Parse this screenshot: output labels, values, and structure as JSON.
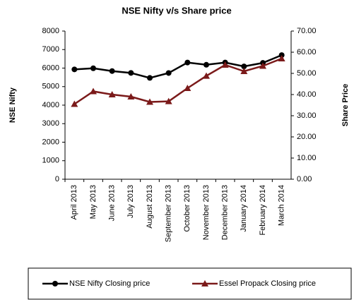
{
  "chart_data": {
    "type": "line",
    "title": "NSE Nifty v/s Share price",
    "y_label": "NSE Nifty",
    "y2_label": "Share Price",
    "categories": [
      "April 2013",
      "May 2013",
      "June 2013",
      "July 2013",
      "August 2013",
      "September 2013",
      "October 2013",
      "November 2013",
      "December 2013",
      "January 2014",
      "February 2014",
      "March 2014"
    ],
    "series": [
      {
        "name": "NSE Nifty Closing price",
        "color": "#000000",
        "marker": "circle",
        "values": [
          5930,
          5990,
          5840,
          5740,
          5470,
          5735,
          6300,
          6180,
          6300,
          6090,
          6280,
          6700
        ]
      },
      {
        "name": "Essel Propack Closing price",
        "color": "#7b1a1a",
        "marker": "triangle",
        "axis": "y2",
        "values": [
          35.5,
          41.5,
          40,
          39,
          36.5,
          36.8,
          43,
          48.8,
          54,
          51,
          53.5,
          57
        ]
      }
    ],
    "ylim": [
      0,
      8000
    ],
    "yticks": [
      0,
      1000,
      2000,
      3000,
      4000,
      5000,
      6000,
      7000,
      8000
    ],
    "y2lim": [
      0,
      70
    ],
    "y2ticks": [
      {
        "value": 0,
        "label": "0.00"
      },
      {
        "value": 10,
        "label": "10.00"
      },
      {
        "value": 20,
        "label": "20.00"
      },
      {
        "value": 30,
        "label": "30.00"
      },
      {
        "value": 40,
        "label": "40.00"
      },
      {
        "value": 50,
        "label": "50.00"
      },
      {
        "value": 60,
        "label": "60.00"
      },
      {
        "value": 70,
        "label": "70.00"
      }
    ],
    "legend": "bottom"
  }
}
